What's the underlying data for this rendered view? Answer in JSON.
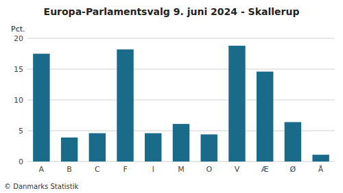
{
  "chart_data": {
    "type": "bar",
    "title": "Europa-Parlamentsvalg 9. juni 2024 - Skallerup",
    "categories": [
      "A",
      "B",
      "C",
      "F",
      "I",
      "M",
      "O",
      "V",
      "Æ",
      "Ø",
      "Å"
    ],
    "values": [
      17.5,
      3.9,
      4.6,
      18.2,
      4.6,
      6.1,
      4.4,
      18.8,
      14.6,
      6.4,
      1.1
    ],
    "color": "#1a6b8a",
    "ylim": [
      0,
      20
    ],
    "yticks": [
      0,
      5,
      10,
      15,
      20
    ],
    "grid": true,
    "ylabel": "Pct.",
    "footer": "© Danmarks Statistik"
  }
}
